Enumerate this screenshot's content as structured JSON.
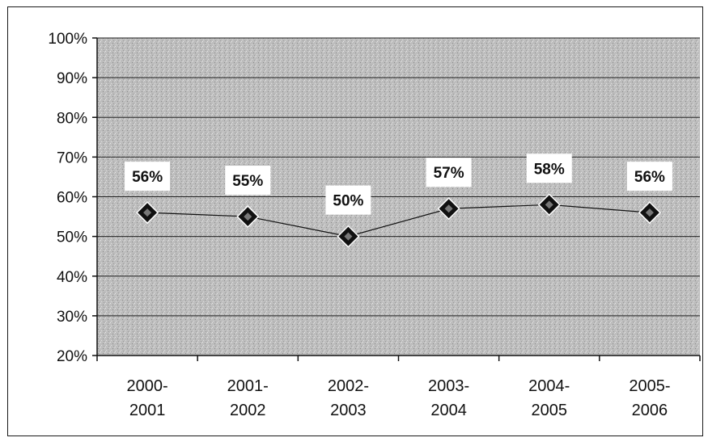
{
  "chart_data": {
    "type": "line",
    "title": "",
    "xlabel": "",
    "ylabel": "",
    "categories": [
      [
        "2000-",
        "2001"
      ],
      [
        "2001-",
        "2002"
      ],
      [
        "2002-",
        "2003"
      ],
      [
        "2003-",
        "2004"
      ],
      [
        "2004-",
        "2005"
      ],
      [
        "2005-",
        "2006"
      ]
    ],
    "series": [
      {
        "values": [
          0.56,
          0.55,
          0.5,
          0.57,
          0.58,
          0.56
        ],
        "data_labels": [
          "56%",
          "55%",
          "50%",
          "57%",
          "58%",
          "56%"
        ],
        "marker": "diamond",
        "color": "#111111"
      }
    ],
    "ylim": [
      0.2,
      1.0
    ],
    "yticks": [
      0.2,
      0.3,
      0.4,
      0.5,
      0.6,
      0.7,
      0.8,
      0.9,
      1.0
    ],
    "ytick_labels": [
      "20%",
      "30%",
      "40%",
      "50%",
      "60%",
      "70%",
      "80%",
      "90%",
      "100%"
    ],
    "grid": true,
    "legend": "none",
    "plot_background": "#c4c4c4"
  }
}
